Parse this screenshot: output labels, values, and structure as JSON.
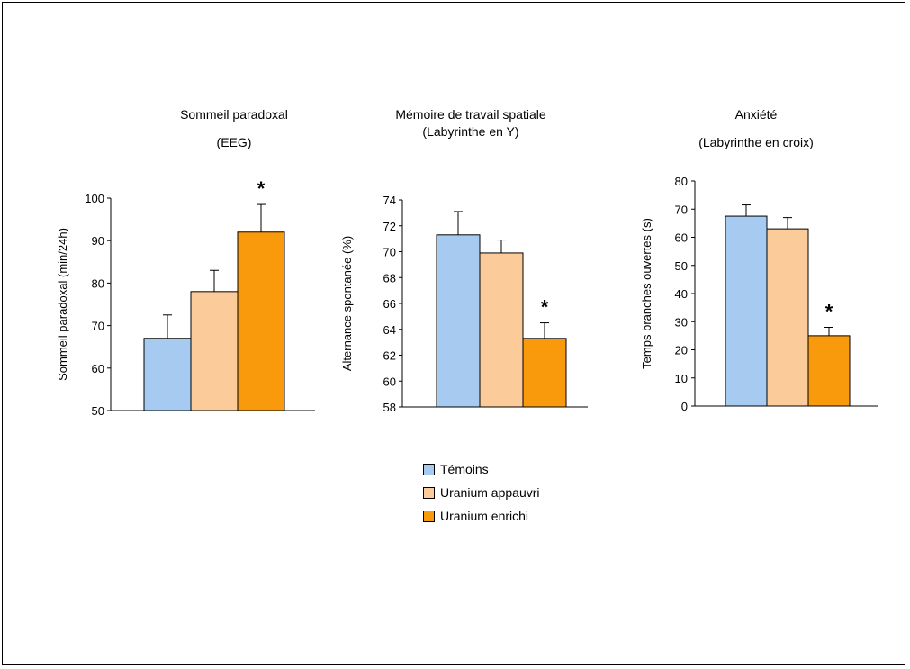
{
  "chart_data": [
    {
      "type": "bar",
      "title": "Sommeil paradoxal",
      "subtitle": "(EEG)",
      "ylabel": "Sommeil paradoxal (min/24h)",
      "ylim": [
        50,
        100
      ],
      "yticks": [
        50,
        60,
        70,
        80,
        90,
        100
      ],
      "categories": [
        "Témoins",
        "Uranium appauvri",
        "Uranium enrichi"
      ],
      "values": [
        67,
        78,
        92
      ],
      "errors": [
        5.5,
        5,
        6.5
      ],
      "significance": [
        "",
        "",
        "*"
      ]
    },
    {
      "type": "bar",
      "title": "Mémoire de travail spatiale",
      "subtitle": "(Labyrinthe en Y)",
      "ylabel": "Alternance spontanée (%)",
      "ylim": [
        58,
        74
      ],
      "yticks": [
        58,
        60,
        62,
        64,
        66,
        68,
        70,
        72,
        74
      ],
      "categories": [
        "Témoins",
        "Uranium appauvri",
        "Uranium enrichi"
      ],
      "values": [
        71.3,
        69.9,
        63.3
      ],
      "errors": [
        1.8,
        1.0,
        1.2
      ],
      "significance": [
        "",
        "",
        "*"
      ]
    },
    {
      "type": "bar",
      "title": "Anxiété",
      "subtitle": "(Labyrinthe en croix)",
      "ylabel": "Temps branches ouvertes (s)",
      "ylim": [
        0,
        80
      ],
      "yticks": [
        0,
        10,
        20,
        30,
        40,
        50,
        60,
        70,
        80
      ],
      "categories": [
        "Témoins",
        "Uranium appauvri",
        "Uranium enrichi"
      ],
      "values": [
        67.5,
        63,
        25
      ],
      "errors": [
        4,
        4,
        3
      ],
      "significance": [
        "",
        "",
        "*"
      ]
    }
  ],
  "legend": {
    "placement": "bottom-center",
    "items": [
      {
        "label": "Témoins",
        "color": "#a6caf0"
      },
      {
        "label": "Uranium appauvri",
        "color": "#fbcb9a"
      },
      {
        "label": "Uranium enrichi",
        "color": "#f99a0c"
      }
    ]
  },
  "colors": {
    "bar_stroke": "#000000",
    "axis": "#000000"
  }
}
